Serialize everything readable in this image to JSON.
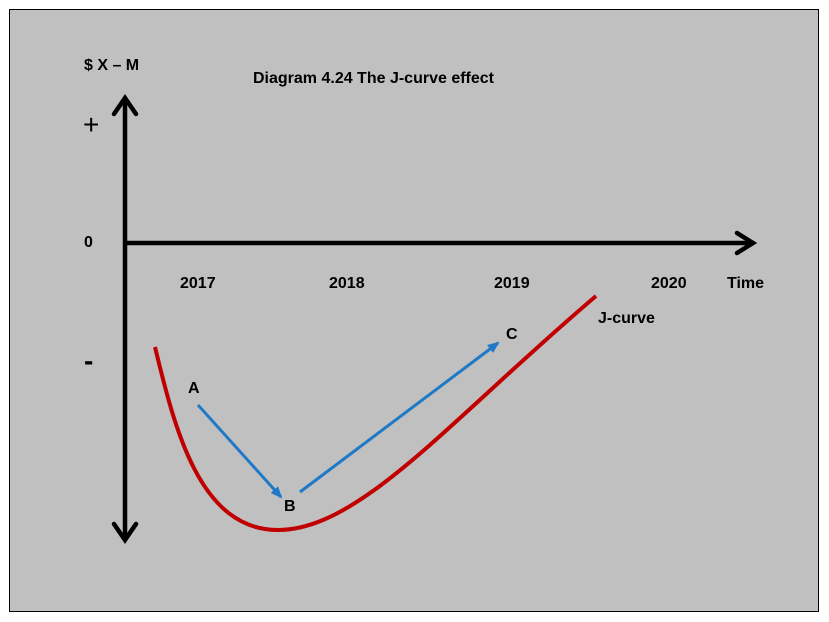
{
  "title": "Diagram 4.24 The J-curve effect",
  "y_axis_label": "$ X – M",
  "y_marks": {
    "plus": "+",
    "zero": "0",
    "minus": "-"
  },
  "x_axis_label": "Time",
  "x_ticks": [
    "2017",
    "2018",
    "2019",
    "2020"
  ],
  "curve_label": "J-curve",
  "points": {
    "a": "A",
    "b": "B",
    "c": "C"
  },
  "colors": {
    "background": "#c0c0c0",
    "curve": "#c00000",
    "arrows": "#1f78c8",
    "axes": "#000000"
  }
}
